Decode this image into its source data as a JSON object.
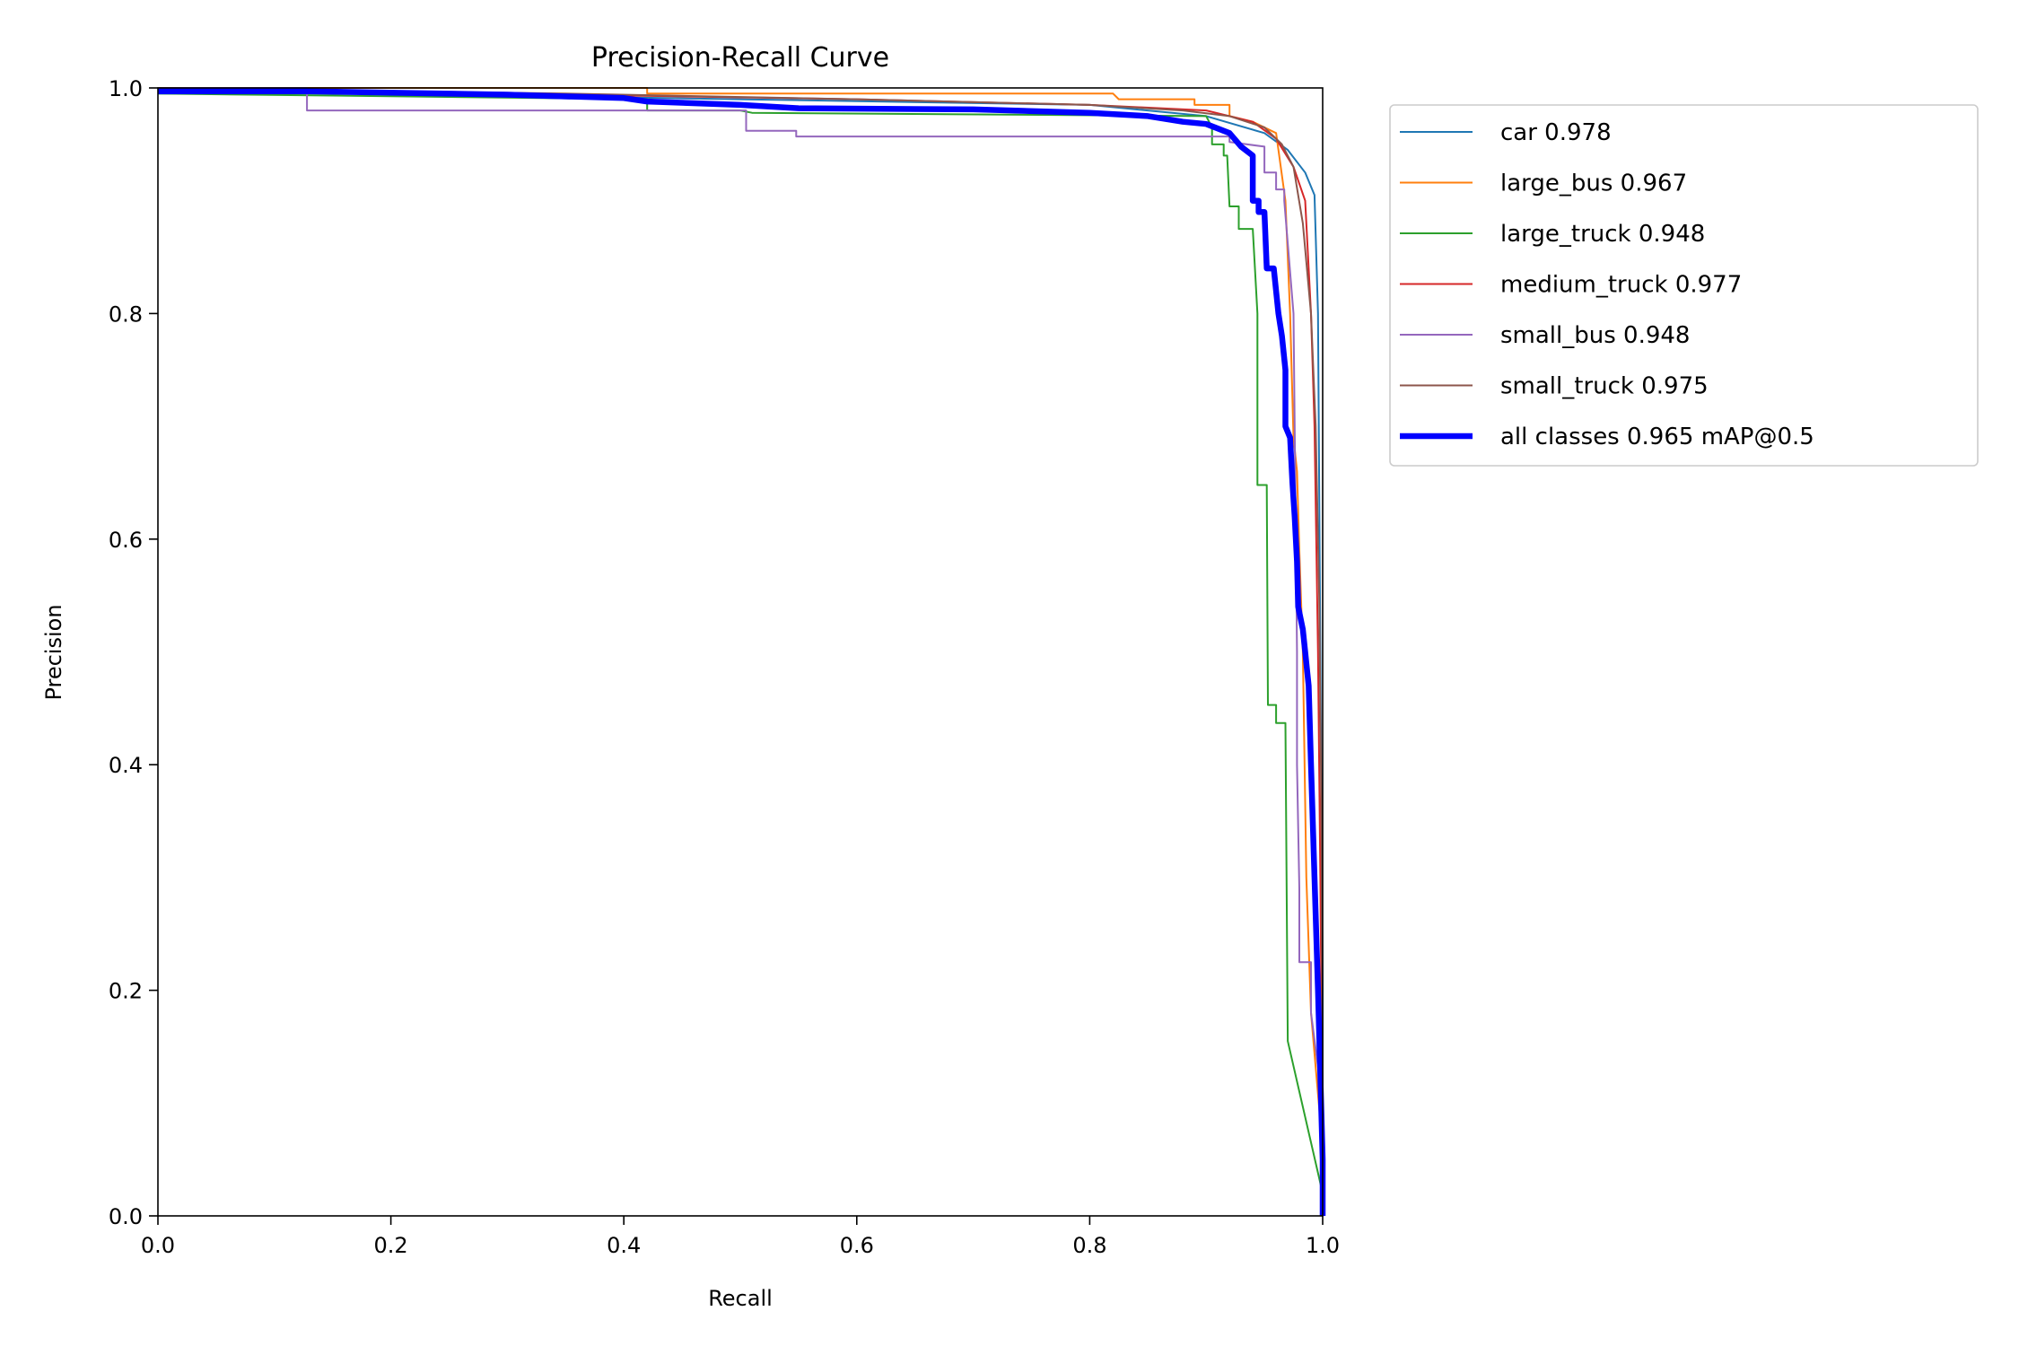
{
  "chart_data": {
    "type": "line",
    "title": "Precision-Recall Curve",
    "xlabel": "Recall",
    "ylabel": "Precision",
    "xlim": [
      0,
      1
    ],
    "ylim": [
      0,
      1
    ],
    "x_ticks": [
      "0.0",
      "0.2",
      "0.4",
      "0.6",
      "0.8",
      "1.0"
    ],
    "y_ticks": [
      "0.0",
      "0.2",
      "0.4",
      "0.6",
      "0.8",
      "1.0"
    ],
    "grid": false,
    "legend_position": "outside-top-right",
    "series": [
      {
        "name": "car 0.978",
        "color": "#1f77b4",
        "width": "thin",
        "points": [
          [
            0,
            0.995
          ],
          [
            0.2,
            0.995
          ],
          [
            0.5,
            0.99
          ],
          [
            0.8,
            0.985
          ],
          [
            0.9,
            0.975
          ],
          [
            0.95,
            0.96
          ],
          [
            0.97,
            0.945
          ],
          [
            0.985,
            0.925
          ],
          [
            0.993,
            0.905
          ],
          [
            0.996,
            0.8
          ],
          [
            0.998,
            0.5
          ],
          [
            1.0,
            0.2
          ],
          [
            1.0,
            0
          ]
        ]
      },
      {
        "name": "large_bus 0.967",
        "color": "#ff7f0e",
        "width": "thin",
        "points": [
          [
            0,
            1.0
          ],
          [
            0.42,
            1.0
          ],
          [
            0.42,
            0.995
          ],
          [
            0.82,
            0.995
          ],
          [
            0.825,
            0.99
          ],
          [
            0.89,
            0.99
          ],
          [
            0.89,
            0.985
          ],
          [
            0.92,
            0.985
          ],
          [
            0.92,
            0.975
          ],
          [
            0.94,
            0.97
          ],
          [
            0.96,
            0.96
          ],
          [
            0.968,
            0.9
          ],
          [
            0.972,
            0.8
          ],
          [
            0.975,
            0.69
          ],
          [
            0.978,
            0.66
          ],
          [
            0.98,
            0.59
          ],
          [
            0.983,
            0.5
          ],
          [
            0.986,
            0.3
          ],
          [
            0.99,
            0.18
          ],
          [
            0.995,
            0.12
          ],
          [
            1.0,
            0.06
          ],
          [
            1.0,
            0
          ]
        ]
      },
      {
        "name": "large_truck 0.948",
        "color": "#2ca02c",
        "width": "thin",
        "points": [
          [
            0,
            0.995
          ],
          [
            0.42,
            0.99
          ],
          [
            0.42,
            0.98
          ],
          [
            0.5,
            0.98
          ],
          [
            0.51,
            0.978
          ],
          [
            0.9,
            0.975
          ],
          [
            0.905,
            0.965
          ],
          [
            0.905,
            0.95
          ],
          [
            0.915,
            0.95
          ],
          [
            0.915,
            0.94
          ],
          [
            0.918,
            0.94
          ],
          [
            0.92,
            0.895
          ],
          [
            0.928,
            0.895
          ],
          [
            0.928,
            0.875
          ],
          [
            0.94,
            0.875
          ],
          [
            0.944,
            0.8
          ],
          [
            0.944,
            0.648
          ],
          [
            0.952,
            0.648
          ],
          [
            0.953,
            0.453
          ],
          [
            0.96,
            0.453
          ],
          [
            0.96,
            0.437
          ],
          [
            0.968,
            0.437
          ],
          [
            0.97,
            0.155
          ],
          [
            1.0,
            0.02
          ],
          [
            1.0,
            0
          ]
        ]
      },
      {
        "name": "medium_truck 0.977",
        "color": "#d62728",
        "width": "thin",
        "points": [
          [
            0,
            1.0
          ],
          [
            0.3,
            0.995
          ],
          [
            0.6,
            0.99
          ],
          [
            0.8,
            0.985
          ],
          [
            0.9,
            0.98
          ],
          [
            0.94,
            0.97
          ],
          [
            0.96,
            0.955
          ],
          [
            0.975,
            0.93
          ],
          [
            0.985,
            0.9
          ],
          [
            0.99,
            0.8
          ],
          [
            0.993,
            0.7
          ],
          [
            0.996,
            0.5
          ],
          [
            0.998,
            0.3
          ],
          [
            1.0,
            0.05
          ],
          [
            1.0,
            0
          ]
        ]
      },
      {
        "name": "small_bus 0.948",
        "color": "#9467bd",
        "width": "thin",
        "points": [
          [
            0,
            1.0
          ],
          [
            0.128,
            1.0
          ],
          [
            0.128,
            0.98
          ],
          [
            0.505,
            0.98
          ],
          [
            0.505,
            0.962
          ],
          [
            0.548,
            0.962
          ],
          [
            0.548,
            0.957
          ],
          [
            0.92,
            0.957
          ],
          [
            0.92,
            0.952
          ],
          [
            0.95,
            0.948
          ],
          [
            0.95,
            0.925
          ],
          [
            0.96,
            0.925
          ],
          [
            0.96,
            0.91
          ],
          [
            0.967,
            0.91
          ],
          [
            0.967,
            0.9
          ],
          [
            0.975,
            0.8
          ],
          [
            0.977,
            0.6
          ],
          [
            0.978,
            0.5
          ],
          [
            0.978,
            0.4
          ],
          [
            0.98,
            0.29
          ],
          [
            0.98,
            0.225
          ],
          [
            0.99,
            0.225
          ],
          [
            0.99,
            0.18
          ],
          [
            1.0,
            0.1
          ],
          [
            1.0,
            0
          ]
        ]
      },
      {
        "name": "small_truck 0.975",
        "color": "#8c564b",
        "width": "thin",
        "points": [
          [
            0,
            1.0
          ],
          [
            0.35,
            0.995
          ],
          [
            0.6,
            0.99
          ],
          [
            0.8,
            0.985
          ],
          [
            0.88,
            0.98
          ],
          [
            0.92,
            0.975
          ],
          [
            0.95,
            0.965
          ],
          [
            0.965,
            0.95
          ],
          [
            0.975,
            0.93
          ],
          [
            0.983,
            0.88
          ],
          [
            0.99,
            0.8
          ],
          [
            0.994,
            0.7
          ],
          [
            0.997,
            0.55
          ],
          [
            0.999,
            0.35
          ],
          [
            1.0,
            0.1
          ],
          [
            1.0,
            0
          ]
        ]
      },
      {
        "name": "all classes 0.965 mAP@0.5",
        "color": "#0000ff",
        "width": "thick",
        "points": [
          [
            0,
            0.997
          ],
          [
            0.13,
            0.997
          ],
          [
            0.3,
            0.994
          ],
          [
            0.4,
            0.991
          ],
          [
            0.42,
            0.988
          ],
          [
            0.5,
            0.985
          ],
          [
            0.55,
            0.982
          ],
          [
            0.7,
            0.981
          ],
          [
            0.8,
            0.978
          ],
          [
            0.85,
            0.975
          ],
          [
            0.88,
            0.97
          ],
          [
            0.9,
            0.968
          ],
          [
            0.92,
            0.96
          ],
          [
            0.93,
            0.948
          ],
          [
            0.94,
            0.94
          ],
          [
            0.94,
            0.9
          ],
          [
            0.945,
            0.9
          ],
          [
            0.945,
            0.89
          ],
          [
            0.95,
            0.89
          ],
          [
            0.952,
            0.84
          ],
          [
            0.958,
            0.84
          ],
          [
            0.96,
            0.82
          ],
          [
            0.962,
            0.8
          ],
          [
            0.965,
            0.78
          ],
          [
            0.968,
            0.75
          ],
          [
            0.968,
            0.7
          ],
          [
            0.972,
            0.69
          ],
          [
            0.974,
            0.65
          ],
          [
            0.976,
            0.62
          ],
          [
            0.978,
            0.58
          ],
          [
            0.979,
            0.54
          ],
          [
            0.983,
            0.52
          ],
          [
            0.985,
            0.5
          ],
          [
            0.988,
            0.47
          ],
          [
            0.99,
            0.4
          ],
          [
            0.993,
            0.3
          ],
          [
            0.996,
            0.2
          ],
          [
            1.0,
            0.05
          ],
          [
            1.0,
            0
          ]
        ]
      }
    ]
  }
}
